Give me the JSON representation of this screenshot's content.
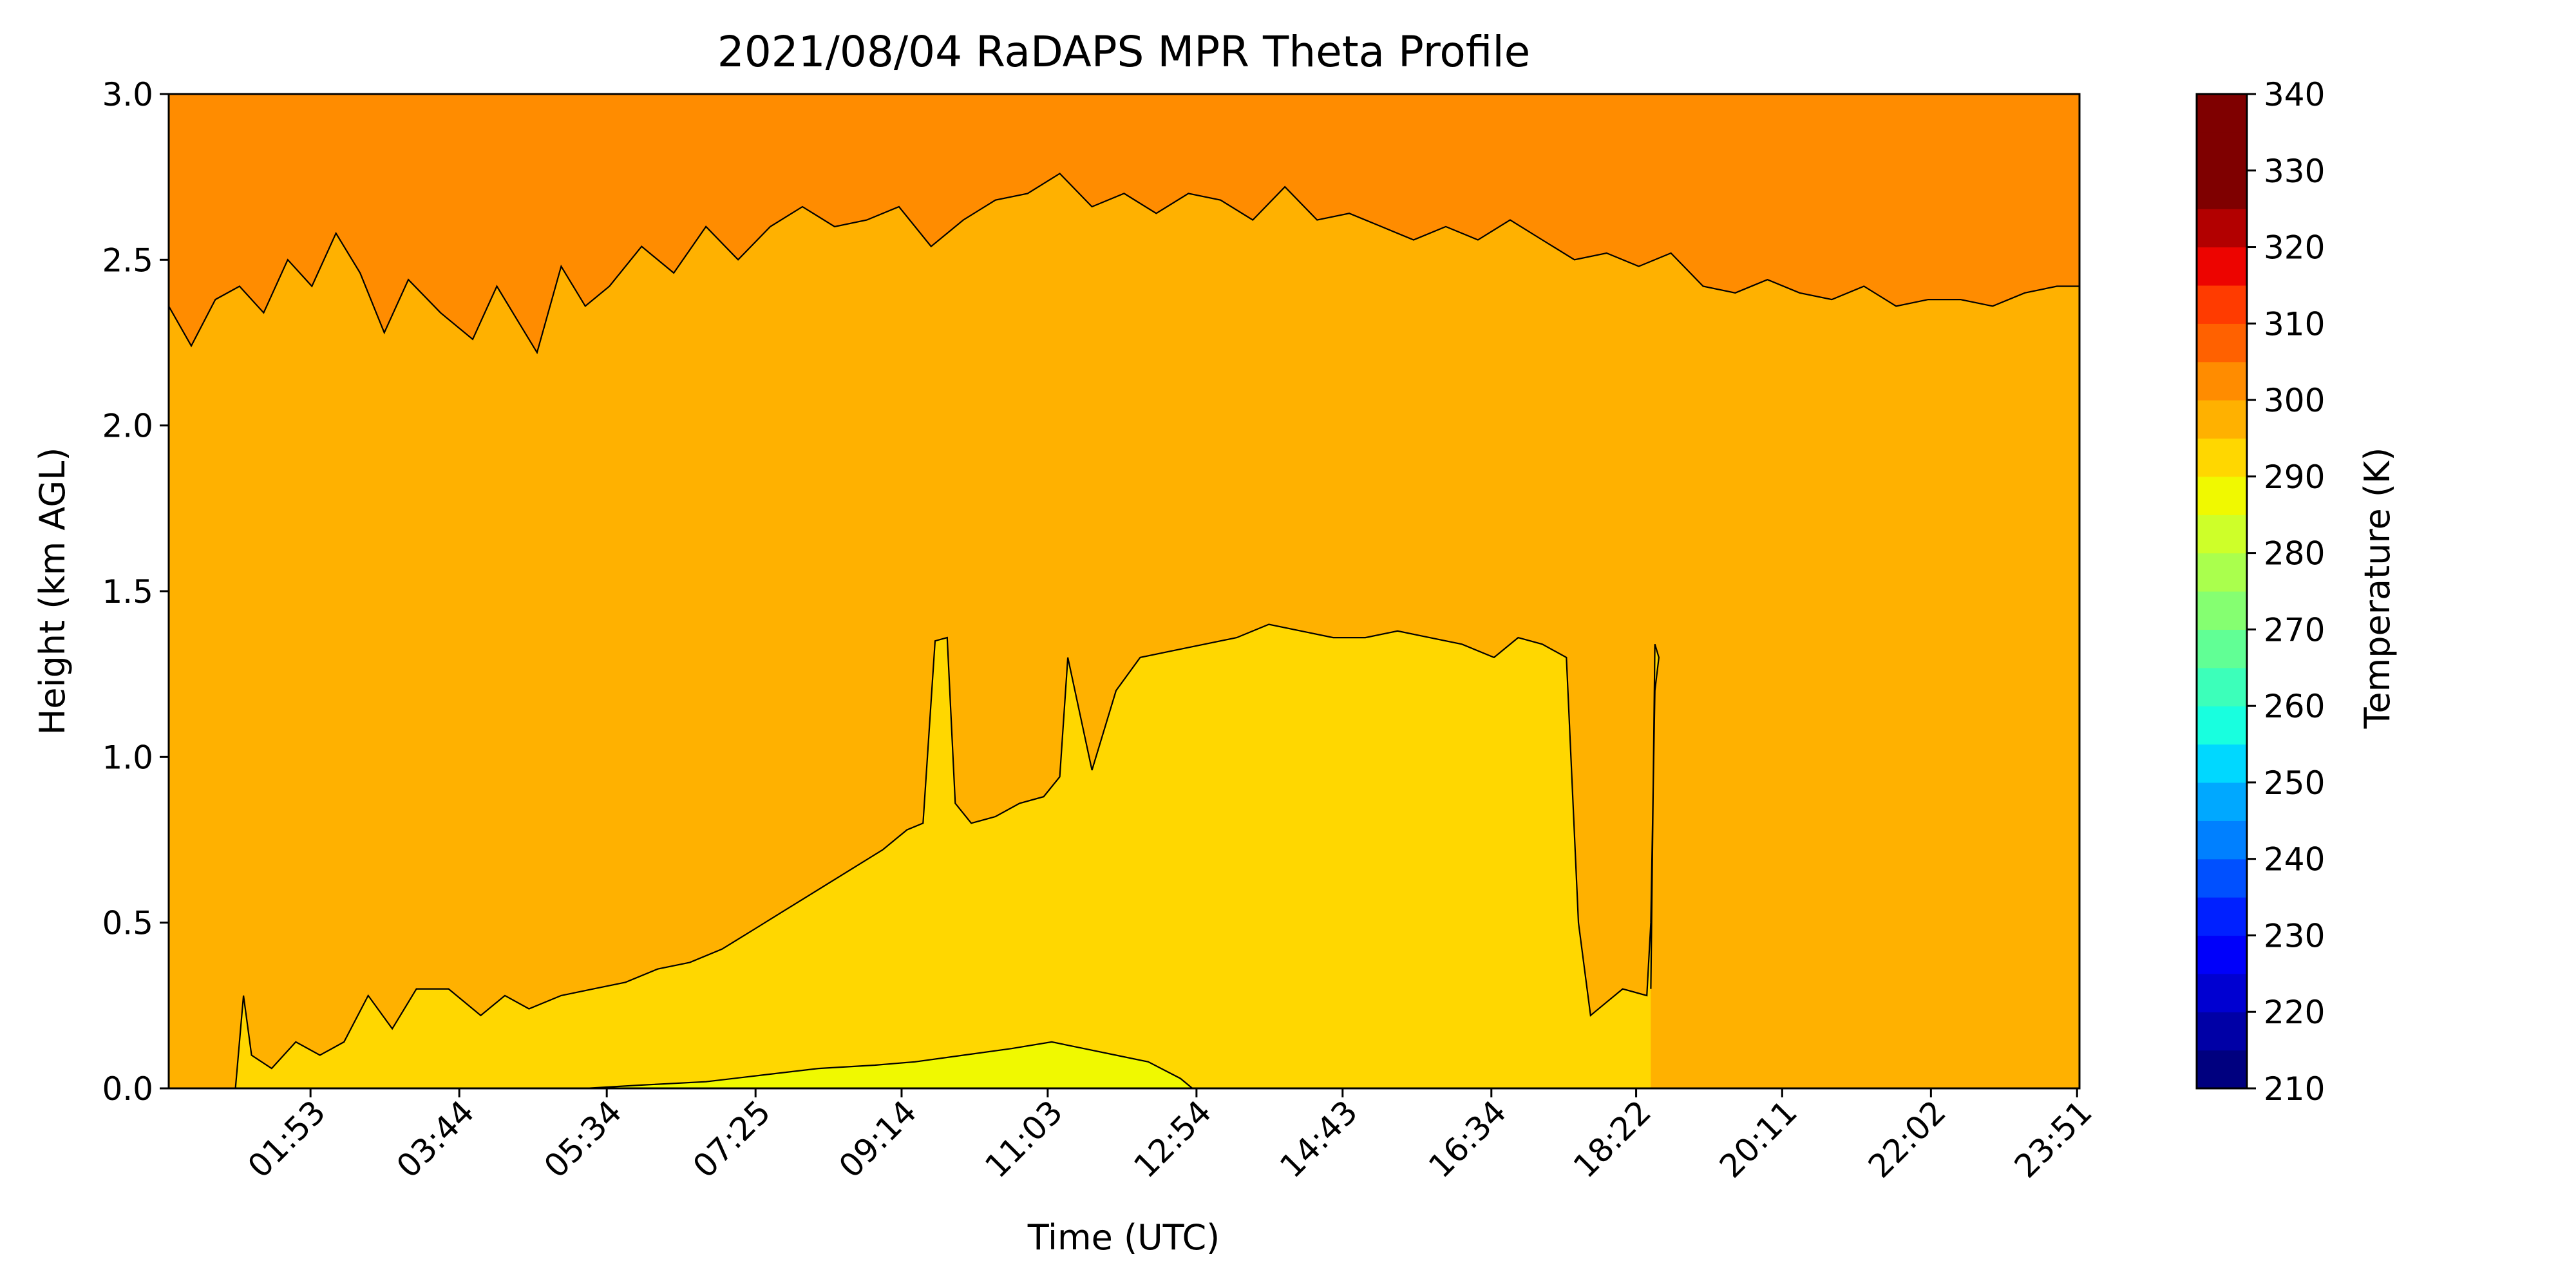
{
  "chart_data": {
    "type": "heatmap",
    "title": "2021/08/04 RaDAPS MPR Theta Profile",
    "xlabel": "Time (UTC)",
    "ylabel": "Height (km AGL)",
    "xticks": [
      "01:53",
      "03:44",
      "05:34",
      "07:25",
      "09:14",
      "11:03",
      "12:54",
      "14:43",
      "16:34",
      "18:22",
      "20:11",
      "22:02",
      "23:51"
    ],
    "xtick_positions_hours": [
      1.883,
      3.733,
      5.567,
      7.417,
      9.233,
      11.05,
      12.9,
      14.717,
      16.567,
      18.367,
      20.183,
      22.033,
      23.85
    ],
    "xlim_hours": [
      0.12,
      23.88
    ],
    "ylim": [
      0,
      3
    ],
    "yticks": [
      "0.0",
      "0.5",
      "1.0",
      "1.5",
      "2.0",
      "2.5",
      "3.0"
    ],
    "colorbar": {
      "label": "Temperature (K)",
      "range": [
        210,
        340
      ],
      "step": 5,
      "ticks": [
        "210",
        "220",
        "230",
        "240",
        "250",
        "260",
        "270",
        "280",
        "290",
        "300",
        "310",
        "320",
        "330",
        "340"
      ],
      "colors": [
        "#00007f",
        "#0000a6",
        "#0000d1",
        "#0000fa",
        "#0020ff",
        "#0050ff",
        "#0080ff",
        "#00a8ff",
        "#00d8ff",
        "#18ffdf",
        "#3cffba",
        "#61ff95",
        "#85ff71",
        "#aaff4d",
        "#ceff29",
        "#f0f900",
        "#ffd700",
        "#ffb100",
        "#ff8c00",
        "#ff6100",
        "#ff3b00",
        "#ed0400",
        "#b20000",
        "#7f0000",
        "#7f0000",
        "#7f0000"
      ]
    },
    "contour_levels_K": [
      295,
      300,
      305
    ],
    "regions": [
      {
        "range_K": [
          305,
          310
        ],
        "color": "#ff8c00",
        "location": "top layer above ~2.3–2.8 km"
      },
      {
        "range_K": [
          300,
          305
        ],
        "color": "#ffb100",
        "location": "bulk layer"
      },
      {
        "range_K": [
          295,
          300
        ],
        "color": "#ffd700",
        "location": "daytime boundary layer up to ~1.4 km"
      },
      {
        "range_K": [
          290,
          295
        ],
        "color": "#f0f900",
        "location": "near surface ~09:00–12:30"
      }
    ],
    "top_boundary_km": [
      [
        0.12,
        2.36
      ],
      [
        0.4,
        2.24
      ],
      [
        0.7,
        2.38
      ],
      [
        1.0,
        2.42
      ],
      [
        1.3,
        2.34
      ],
      [
        1.6,
        2.5
      ],
      [
        1.9,
        2.42
      ],
      [
        2.2,
        2.58
      ],
      [
        2.5,
        2.46
      ],
      [
        2.8,
        2.28
      ],
      [
        3.1,
        2.44
      ],
      [
        3.5,
        2.34
      ],
      [
        3.9,
        2.26
      ],
      [
        4.2,
        2.42
      ],
      [
        4.5,
        2.3
      ],
      [
        4.7,
        2.22
      ],
      [
        5.0,
        2.48
      ],
      [
        5.3,
        2.36
      ],
      [
        5.6,
        2.42
      ],
      [
        6.0,
        2.54
      ],
      [
        6.4,
        2.46
      ],
      [
        6.8,
        2.6
      ],
      [
        7.2,
        2.5
      ],
      [
        7.6,
        2.6
      ],
      [
        8.0,
        2.66
      ],
      [
        8.4,
        2.6
      ],
      [
        8.8,
        2.62
      ],
      [
        9.2,
        2.66
      ],
      [
        9.6,
        2.54
      ],
      [
        10.0,
        2.62
      ],
      [
        10.4,
        2.68
      ],
      [
        10.8,
        2.7
      ],
      [
        11.2,
        2.76
      ],
      [
        11.6,
        2.66
      ],
      [
        12.0,
        2.7
      ],
      [
        12.4,
        2.64
      ],
      [
        12.8,
        2.7
      ],
      [
        13.2,
        2.68
      ],
      [
        13.6,
        2.62
      ],
      [
        14.0,
        2.72
      ],
      [
        14.4,
        2.62
      ],
      [
        14.8,
        2.64
      ],
      [
        15.2,
        2.6
      ],
      [
        15.6,
        2.56
      ],
      [
        16.0,
        2.6
      ],
      [
        16.4,
        2.56
      ],
      [
        16.8,
        2.62
      ],
      [
        17.2,
        2.56
      ],
      [
        17.6,
        2.5
      ],
      [
        18.0,
        2.52
      ],
      [
        18.4,
        2.48
      ],
      [
        18.8,
        2.52
      ],
      [
        19.2,
        2.42
      ],
      [
        19.6,
        2.4
      ],
      [
        20.0,
        2.44
      ],
      [
        20.4,
        2.4
      ],
      [
        20.8,
        2.38
      ],
      [
        21.2,
        2.42
      ],
      [
        21.6,
        2.36
      ],
      [
        22.0,
        2.38
      ],
      [
        22.4,
        2.38
      ],
      [
        22.8,
        2.36
      ],
      [
        23.2,
        2.4
      ],
      [
        23.6,
        2.42
      ],
      [
        23.88,
        2.42
      ]
    ],
    "bl_boundary_km": [
      [
        0.12,
        0.0
      ],
      [
        0.95,
        0.0
      ],
      [
        1.05,
        0.28
      ],
      [
        1.15,
        0.1
      ],
      [
        1.4,
        0.06
      ],
      [
        1.7,
        0.14
      ],
      [
        2.0,
        0.1
      ],
      [
        2.3,
        0.14
      ],
      [
        2.6,
        0.28
      ],
      [
        2.9,
        0.18
      ],
      [
        3.2,
        0.3
      ],
      [
        3.6,
        0.3
      ],
      [
        4.0,
        0.22
      ],
      [
        4.3,
        0.28
      ],
      [
        4.6,
        0.24
      ],
      [
        5.0,
        0.28
      ],
      [
        5.4,
        0.3
      ],
      [
        5.8,
        0.32
      ],
      [
        6.2,
        0.36
      ],
      [
        6.6,
        0.38
      ],
      [
        7.0,
        0.42
      ],
      [
        7.4,
        0.48
      ],
      [
        7.8,
        0.54
      ],
      [
        8.2,
        0.6
      ],
      [
        8.6,
        0.66
      ],
      [
        9.0,
        0.72
      ],
      [
        9.3,
        0.78
      ],
      [
        9.5,
        0.8
      ],
      [
        9.65,
        1.35
      ],
      [
        9.8,
        1.36
      ],
      [
        9.9,
        0.86
      ],
      [
        10.1,
        0.8
      ],
      [
        10.4,
        0.82
      ],
      [
        10.7,
        0.86
      ],
      [
        11.0,
        0.88
      ],
      [
        11.2,
        0.94
      ],
      [
        11.3,
        1.3
      ],
      [
        11.6,
        0.96
      ],
      [
        11.9,
        1.2
      ],
      [
        12.2,
        1.3
      ],
      [
        12.6,
        1.32
      ],
      [
        13.0,
        1.34
      ],
      [
        13.4,
        1.36
      ],
      [
        13.8,
        1.4
      ],
      [
        14.2,
        1.38
      ],
      [
        14.6,
        1.36
      ],
      [
        15.0,
        1.36
      ],
      [
        15.4,
        1.38
      ],
      [
        15.8,
        1.36
      ],
      [
        16.2,
        1.34
      ],
      [
        16.6,
        1.3
      ],
      [
        16.9,
        1.36
      ],
      [
        17.2,
        1.34
      ],
      [
        17.5,
        1.3
      ],
      [
        17.65,
        0.5
      ],
      [
        17.8,
        0.22
      ],
      [
        18.0,
        0.26
      ],
      [
        18.2,
        0.3
      ],
      [
        18.5,
        0.28
      ],
      [
        18.55,
        0.5
      ],
      [
        18.6,
        1.2
      ],
      [
        18.65,
        1.3
      ],
      [
        18.6,
        1.34
      ],
      [
        18.55,
        0.3
      ]
    ],
    "warm_near_surface_km": [
      [
        5.3,
        0.0
      ],
      [
        6.0,
        0.01
      ],
      [
        6.8,
        0.02
      ],
      [
        7.5,
        0.04
      ],
      [
        8.2,
        0.06
      ],
      [
        8.9,
        0.07
      ],
      [
        9.4,
        0.08
      ],
      [
        10.0,
        0.1
      ],
      [
        10.6,
        0.12
      ],
      [
        11.1,
        0.14
      ],
      [
        11.5,
        0.12
      ],
      [
        11.9,
        0.1
      ],
      [
        12.3,
        0.08
      ],
      [
        12.7,
        0.03
      ],
      [
        12.85,
        0.0
      ]
    ]
  }
}
